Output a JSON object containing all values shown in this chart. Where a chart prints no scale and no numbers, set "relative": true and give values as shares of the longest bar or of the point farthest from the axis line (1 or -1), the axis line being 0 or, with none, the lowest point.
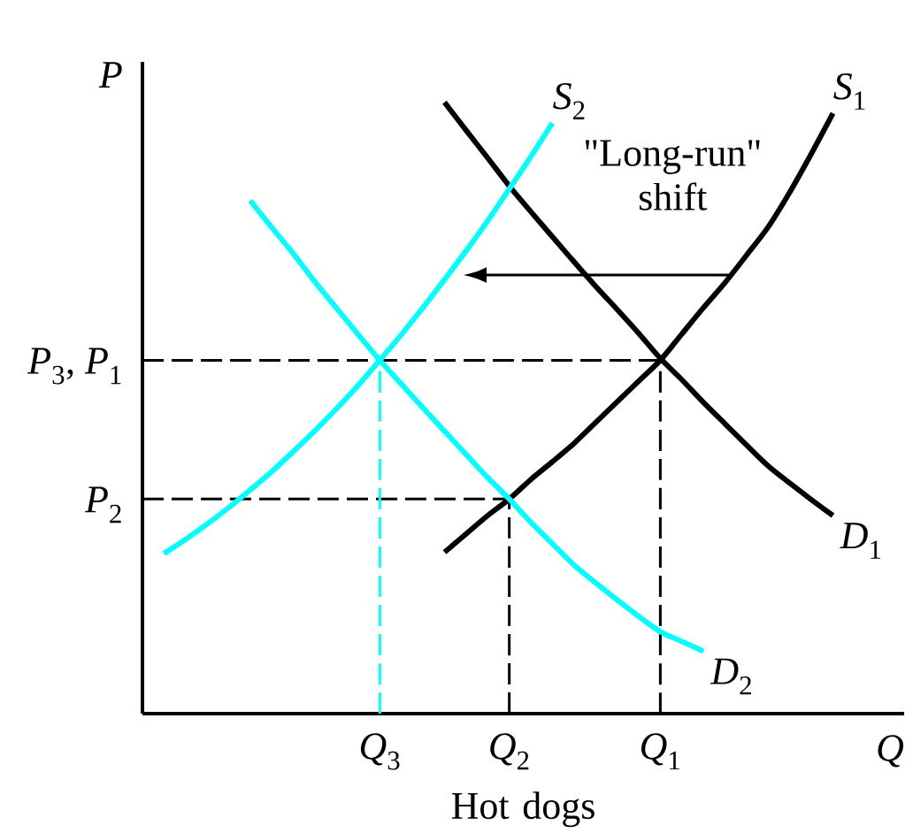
{
  "chart_data": {
    "type": "line",
    "relative": true,
    "xlabel": "Q",
    "ylabel": "P",
    "categories": [
      null,
      null,
      null,
      null,
      null,
      null,
      null,
      null,
      null,
      null,
      null,
      "*Q*$_{3}$",
      null,
      null,
      null,
      null,
      null,
      "*Q*$_{2}$",
      null,
      null,
      null,
      null,
      null,
      null,
      "*Q*$_{1}$",
      null,
      null,
      null,
      null,
      null,
      null,
      null,
      null,
      null,
      null,
      null
    ],
    "annotations": [
      "Hot dogs",
      "\"Long-run\" shift"
    ],
    "series": [
      {
        "name": "*P*$_{3}$, *P*$_{1}$",
        "color": "#000000",
        "line_style": "dashed",
        "values": [
          0.578,
          0.578,
          0.578,
          0.578,
          0.578,
          0.578,
          0.578,
          0.578,
          0.578,
          0.578,
          0.578,
          0.578,
          0.578,
          0.578,
          0.578,
          0.578,
          0.578,
          0.578,
          0.578,
          0.578,
          0.578,
          0.578,
          0.578,
          0.578,
          0.578,
          null,
          null,
          null,
          null,
          null,
          null,
          null,
          null,
          null,
          null,
          null
        ]
      },
      {
        "name": "*P*$_{2}$",
        "color": "#000000",
        "line_style": "dashed",
        "values": [
          0.351,
          0.351,
          0.351,
          0.351,
          0.351,
          0.351,
          0.351,
          0.351,
          0.351,
          0.351,
          0.351,
          0.351,
          0.351,
          0.351,
          0.351,
          0.351,
          0.351,
          0.351,
          null,
          null,
          null,
          null,
          null,
          null,
          null,
          null,
          null,
          null,
          null,
          null,
          null,
          null,
          null,
          null,
          null,
          null
        ]
      },
      {
        "color": "#00ffff",
        "line_style": "dashed",
        "x": [
          "*Q*$_{3}$",
          "*Q*$_{3}$"
        ],
        "values": [
          0,
          0.578
        ]
      },
      {
        "color": "#000000",
        "line_style": "dashed",
        "x": [
          "*Q*$_{2}$",
          "*Q*$_{2}$"
        ],
        "values": [
          0,
          0.351
        ]
      },
      {
        "color": "#000000",
        "line_style": "dashed",
        "x": [
          "*Q*$_{1}$",
          "*Q*$_{1}$"
        ],
        "values": [
          0,
          0.578
        ]
      },
      {
        "name": "*S*$_{1}$",
        "color": "#000000",
        "values": [
          null,
          null,
          null,
          null,
          null,
          null,
          null,
          null,
          null,
          null,
          null,
          null,
          null,
          null,
          0.264,
          0.294,
          0.324,
          0.351,
          0.383,
          0.412,
          0.442,
          0.476,
          0.51,
          0.544,
          0.578,
          0.621,
          0.664,
          0.705,
          0.75,
          0.796,
          0.853,
          0.916,
          0.982,
          null,
          null,
          null
        ]
      },
      {
        "name": "*D*$_{1}$",
        "color": "#000000",
        "values": [
          null,
          null,
          null,
          null,
          null,
          null,
          null,
          null,
          null,
          null,
          null,
          null,
          null,
          null,
          1.0,
          0.954,
          0.909,
          0.863,
          0.821,
          0.78,
          0.739,
          0.699,
          0.661,
          0.622,
          0.581,
          0.546,
          0.509,
          0.474,
          0.439,
          0.405,
          0.377,
          0.35,
          0.324,
          null,
          null,
          null
        ]
      },
      {
        "name": "*S*$_{2}$",
        "color": "#00ffff",
        "values": [
          null,
          0.262,
          0.285,
          0.31,
          0.337,
          0.366,
          0.396,
          0.429,
          0.463,
          0.499,
          0.537,
          0.578,
          0.62,
          0.664,
          0.71,
          0.757,
          0.806,
          0.858,
          0.911,
          0.966,
          null,
          null,
          null,
          null,
          null,
          null,
          null,
          null,
          null,
          null,
          null,
          null,
          null,
          null,
          null,
          null
        ]
      },
      {
        "name": "*D*$_{2}$",
        "color": "#00ffff",
        "values": [
          null,
          null,
          null,
          null,
          null,
          0.839,
          0.795,
          0.752,
          0.706,
          0.663,
          0.62,
          0.578,
          0.539,
          0.5,
          0.462,
          0.424,
          0.386,
          0.351,
          0.313,
          0.278,
          0.243,
          0.214,
          0.186,
          0.159,
          0.134,
          0.118,
          0.102,
          null,
          null,
          null,
          null,
          null,
          null,
          null,
          null,
          null
        ]
      }
    ]
  }
}
